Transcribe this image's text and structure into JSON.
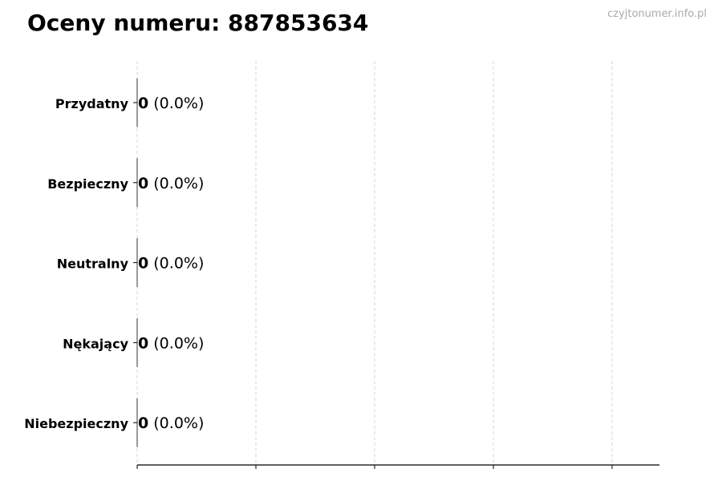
{
  "title": "Oceny numeru: 887853634",
  "watermark": "czyjtonumer.info.pl",
  "chart_data": {
    "type": "bar",
    "orientation": "horizontal",
    "title": "Oceny numeru: 887853634",
    "categories": [
      "Przydatny",
      "Bezpieczny",
      "Neutralny",
      "Nękający",
      "Niebezpieczny"
    ],
    "values": [
      0,
      0,
      0,
      0,
      0
    ],
    "percentages": [
      "0.0%",
      "0.0%",
      "0.0%",
      "0.0%",
      "0.0%"
    ],
    "data_labels": [
      "0 (0.0%)",
      "0 (0.0%)",
      "0 (0.0%)",
      "0 (0.0%)",
      "0 (0.0%)"
    ],
    "xlabel": "",
    "ylabel": "",
    "x_tick_labels_shown": false,
    "grid": "vertical dashed",
    "colors": {
      "bar_edge": "#333333",
      "grid": "#cccccc",
      "axis": "#000000"
    }
  }
}
